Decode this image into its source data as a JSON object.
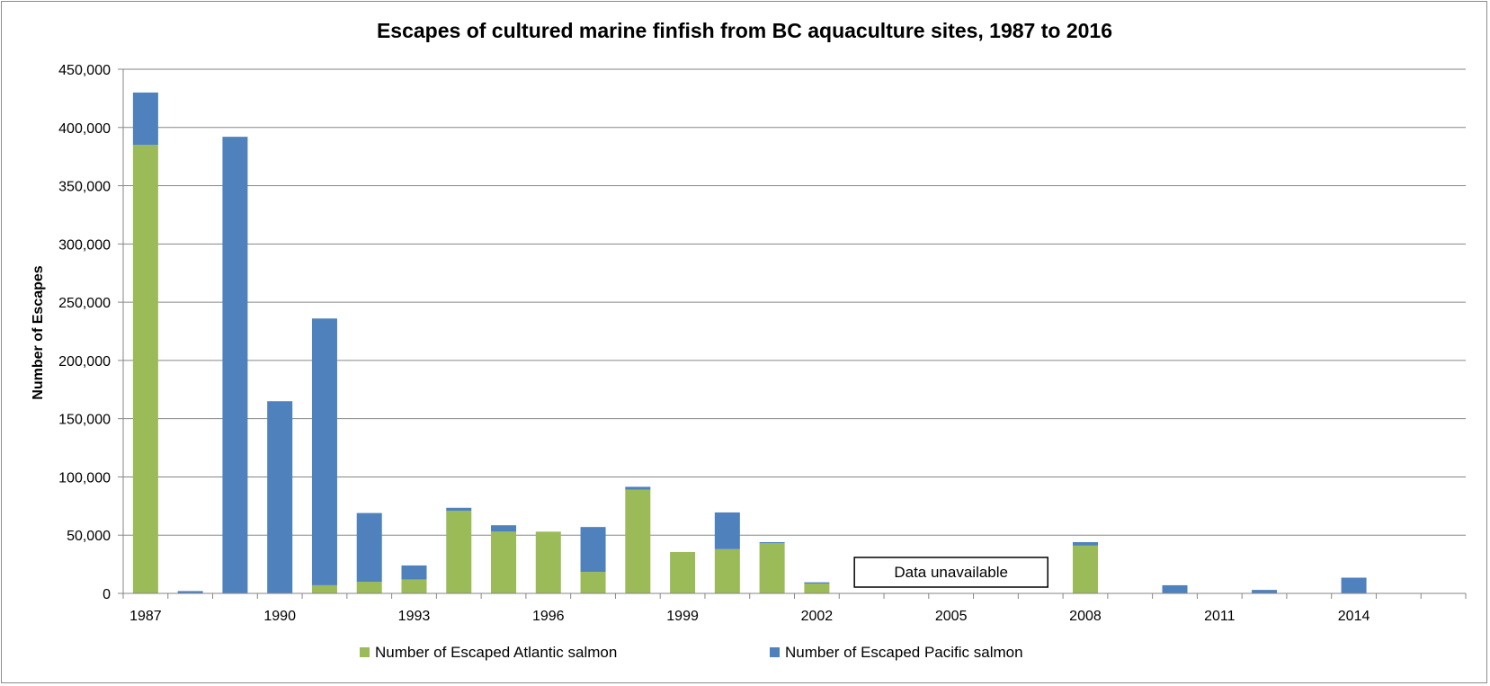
{
  "chart_data": {
    "type": "bar",
    "stacked": true,
    "title": "Escapes of cultured marine finfish from BC aquaculture sites, 1987 to 2016",
    "xlabel": "",
    "ylabel": "Number of  Escapes",
    "ylim": [
      0,
      450000
    ],
    "yticks": [
      0,
      50000,
      100000,
      150000,
      200000,
      250000,
      300000,
      350000,
      400000,
      450000
    ],
    "ytick_labels": [
      "0",
      "50,000",
      "100,000",
      "150,000",
      "200,000",
      "250,000",
      "300,000",
      "350,000",
      "400,000",
      "450,000"
    ],
    "grid": true,
    "legend_position": "bottom",
    "categories": [
      "1987",
      "1988",
      "1989",
      "1990",
      "1991",
      "1992",
      "1993",
      "1994",
      "1995",
      "1996",
      "1997",
      "1998",
      "1999",
      "2000",
      "2001",
      "2002",
      "2003",
      "2004",
      "2005",
      "2006",
      "2007",
      "2008",
      "2009",
      "2010",
      "2011",
      "2012",
      "2013",
      "2014",
      "2015",
      "2016"
    ],
    "x_tick_labels": [
      "1987",
      "1990",
      "1993",
      "1996",
      "1999",
      "2002",
      "2005",
      "2008",
      "2011",
      "2014"
    ],
    "series": [
      {
        "name": "Number of Escaped Atlantic salmon",
        "color": "#9bbb59",
        "values": [
          385000,
          0,
          0,
          0,
          7000,
          10000,
          12000,
          71000,
          53000,
          53000,
          18500,
          89000,
          35500,
          38000,
          43000,
          8500,
          0,
          0,
          0,
          0,
          0,
          41000,
          0,
          0,
          0,
          0,
          0,
          0,
          0,
          0
        ]
      },
      {
        "name": "Number of Escaped Pacific salmon",
        "color": "#4f81bd",
        "values": [
          45000,
          2000,
          392000,
          165000,
          229000,
          59000,
          12000,
          2500,
          5500,
          0,
          38500,
          2500,
          0,
          31500,
          1000,
          1000,
          0,
          0,
          0,
          0,
          0,
          3000,
          0,
          7000,
          0,
          3000,
          0,
          13500,
          0,
          0
        ]
      }
    ],
    "annotations": [
      {
        "text": "Data unavailable",
        "x_start": "2003",
        "x_end": "2007"
      }
    ]
  }
}
